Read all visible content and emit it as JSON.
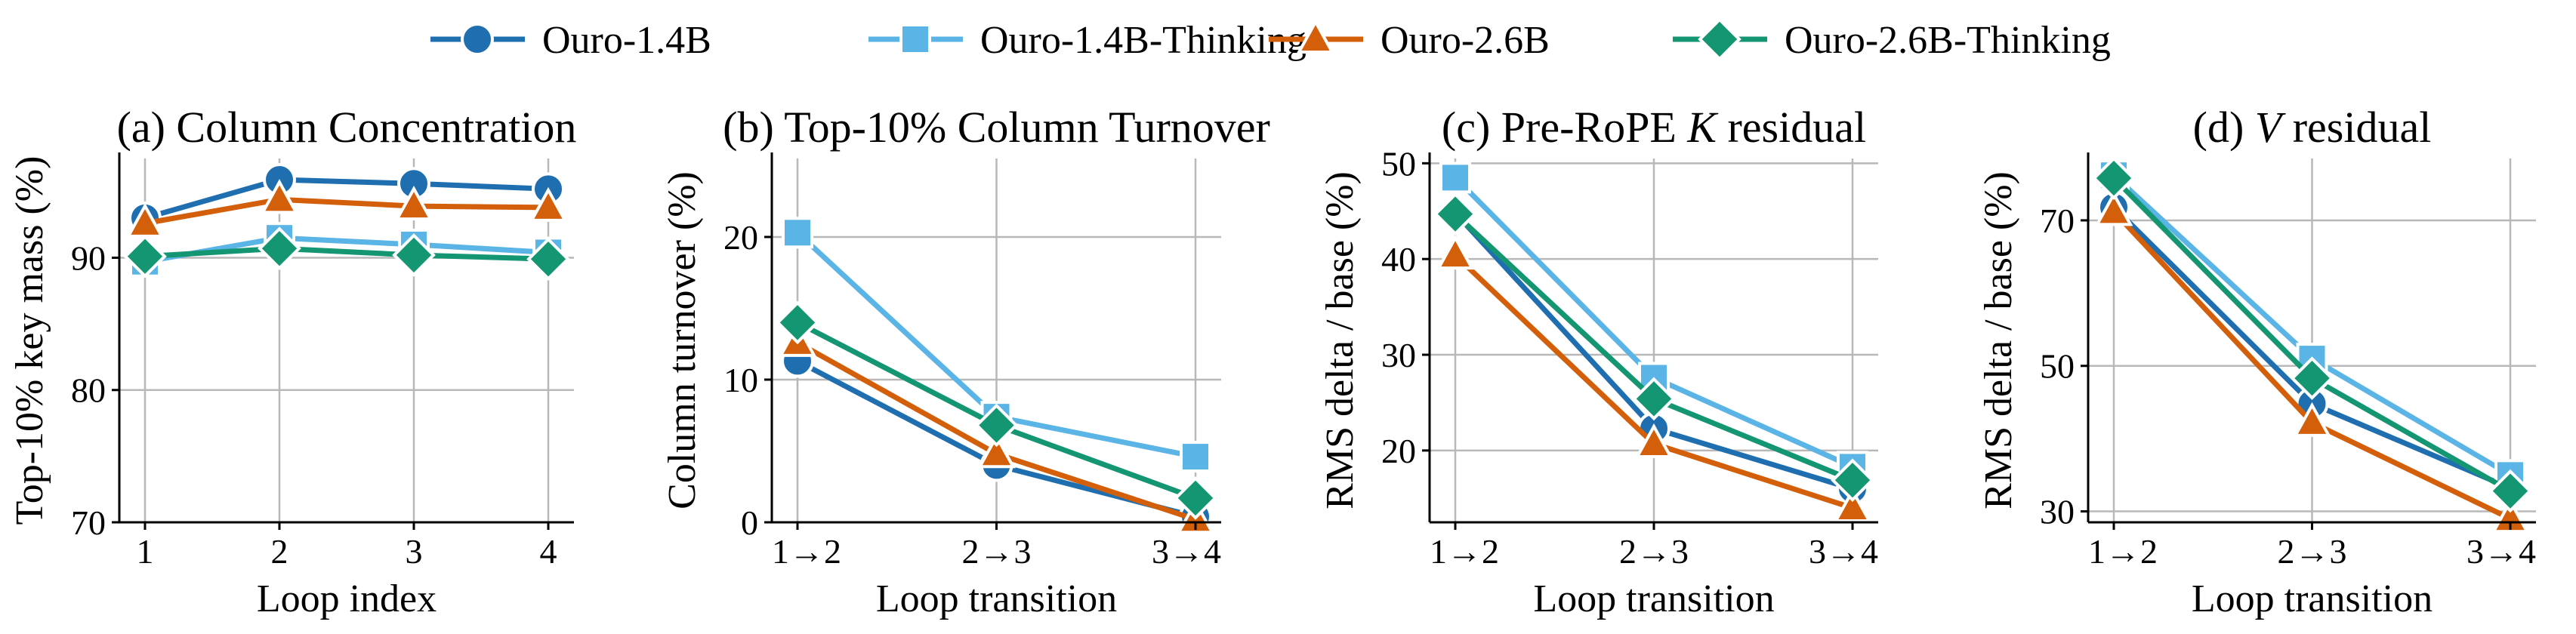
{
  "legend": [
    {
      "name": "Ouro-1.4B",
      "color": "#1f6fb0",
      "marker": "circle"
    },
    {
      "name": "Ouro-1.4B-Thinking",
      "color": "#5ab4e5",
      "marker": "square"
    },
    {
      "name": "Ouro-2.6B",
      "color": "#d35f0a",
      "marker": "triangle"
    },
    {
      "name": "Ouro-2.6B-Thinking",
      "color": "#149673",
      "marker": "diamond"
    }
  ],
  "chart_data": [
    {
      "type": "line",
      "title": "(a) Column Concentration",
      "xlabel": "Loop index",
      "ylabel": "Top-10% key mass (%)",
      "categories": [
        "1",
        "2",
        "3",
        "4"
      ],
      "ylim": [
        70,
        97.5
      ],
      "yticks": [
        70,
        80,
        90
      ],
      "grid": true,
      "series": [
        {
          "name": "Ouro-1.4B",
          "values": [
            93.0,
            95.9,
            95.6,
            95.2
          ]
        },
        {
          "name": "Ouro-1.4B-Thinking",
          "values": [
            89.7,
            91.5,
            91.0,
            90.4
          ]
        },
        {
          "name": "Ouro-2.6B",
          "values": [
            92.6,
            94.4,
            93.9,
            93.8
          ]
        },
        {
          "name": "Ouro-2.6B-Thinking",
          "values": [
            90.1,
            90.7,
            90.2,
            89.9
          ]
        }
      ]
    },
    {
      "type": "line",
      "title": "(b) Top-10% Column Turnover",
      "xlabel": "Loop transition",
      "ylabel": "Column turnover (%)",
      "categories": [
        "1→2",
        "2→3",
        "3→4"
      ],
      "ylim": [
        0,
        25.5
      ],
      "yticks": [
        0,
        10,
        20
      ],
      "grid": true,
      "series": [
        {
          "name": "Ouro-1.4B",
          "values": [
            11.3,
            4.0,
            0.4
          ]
        },
        {
          "name": "Ouro-1.4B-Thinking",
          "values": [
            20.3,
            7.4,
            4.6
          ]
        },
        {
          "name": "Ouro-2.6B",
          "values": [
            12.6,
            4.8,
            0.2
          ]
        },
        {
          "name": "Ouro-2.6B-Thinking",
          "values": [
            14.0,
            6.8,
            1.7
          ]
        }
      ]
    },
    {
      "type": "line",
      "title": "(c) Pre-RoPE K residual",
      "title_parts": [
        "(c) Pre-RoPE ",
        "K",
        " residual"
      ],
      "xlabel": "Loop transition",
      "ylabel": "RMS delta / base (%)",
      "categories": [
        "1→2",
        "2→3",
        "3→4"
      ],
      "ylim": [
        12.5,
        50.5
      ],
      "yticks": [
        20,
        30,
        40,
        50
      ],
      "grid": true,
      "series": [
        {
          "name": "Ouro-1.4B",
          "values": [
            44.8,
            22.3,
            16.0
          ]
        },
        {
          "name": "Ouro-1.4B-Thinking",
          "values": [
            48.5,
            27.6,
            18.3
          ]
        },
        {
          "name": "Ouro-2.6B",
          "values": [
            40.4,
            20.7,
            14.0
          ]
        },
        {
          "name": "Ouro-2.6B-Thinking",
          "values": [
            44.7,
            25.4,
            16.9
          ]
        }
      ]
    },
    {
      "type": "line",
      "title": "(d) V residual",
      "title_parts": [
        "(d) ",
        "V",
        " residual"
      ],
      "xlabel": "Loop transition",
      "ylabel": "RMS delta / base (%)",
      "categories": [
        "1→2",
        "2→3",
        "3→4"
      ],
      "ylim": [
        28.5,
        78.5
      ],
      "yticks": [
        30,
        50,
        70
      ],
      "grid": true,
      "series": [
        {
          "name": "Ouro-1.4B",
          "values": [
            71.8,
            44.8,
            33.2
          ]
        },
        {
          "name": "Ouro-1.4B-Thinking",
          "values": [
            76.2,
            51.0,
            35.0
          ]
        },
        {
          "name": "Ouro-2.6B",
          "values": [
            71.2,
            42.2,
            29.0
          ]
        },
        {
          "name": "Ouro-2.6B-Thinking",
          "values": [
            75.8,
            48.3,
            32.8
          ]
        }
      ]
    }
  ]
}
